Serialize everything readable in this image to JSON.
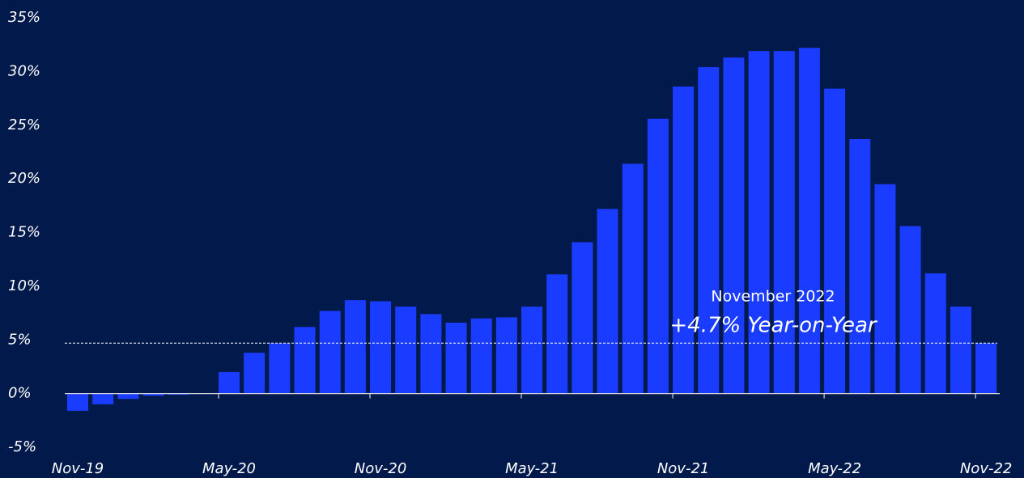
{
  "chart_data": {
    "type": "bar",
    "categories": [
      "Nov-19",
      null,
      null,
      null,
      null,
      null,
      "May-20",
      null,
      null,
      null,
      null,
      null,
      "Nov-20",
      null,
      null,
      null,
      null,
      null,
      "May-21",
      null,
      null,
      null,
      null,
      null,
      "Nov-21",
      null,
      null,
      null,
      null,
      null,
      "May-22",
      null,
      null,
      null,
      null,
      null,
      "Nov-22"
    ],
    "values": [
      -1.6,
      -1.0,
      -0.5,
      -0.2,
      -0.1,
      0,
      2.0,
      3.8,
      4.7,
      6.2,
      7.7,
      8.7,
      8.6,
      8.1,
      7.4,
      6.6,
      7.0,
      7.1,
      8.1,
      11.1,
      14.1,
      17.2,
      21.4,
      25.6,
      28.6,
      30.4,
      31.3,
      31.9,
      31.9,
      32.2,
      28.4,
      23.7,
      19.5,
      15.6,
      11.2,
      8.1,
      4.7
    ],
    "color": "#1a3cff",
    "ylim": [
      -5,
      35
    ],
    "yticks": [
      {
        "value": -5,
        "label": "-5%"
      },
      {
        "value": 0,
        "label": "0%"
      },
      {
        "value": 5,
        "label": "5%"
      },
      {
        "value": 10,
        "label": "10%"
      },
      {
        "value": 15,
        "label": "15%"
      },
      {
        "value": 20,
        "label": "20%"
      },
      {
        "value": 25,
        "label": "25%"
      },
      {
        "value": 30,
        "label": "30%"
      },
      {
        "value": 35,
        "label": "35%"
      }
    ],
    "reference_line": 4.7,
    "annotations": [
      "November 2022",
      "+4.7% Year-on-Year"
    ]
  }
}
